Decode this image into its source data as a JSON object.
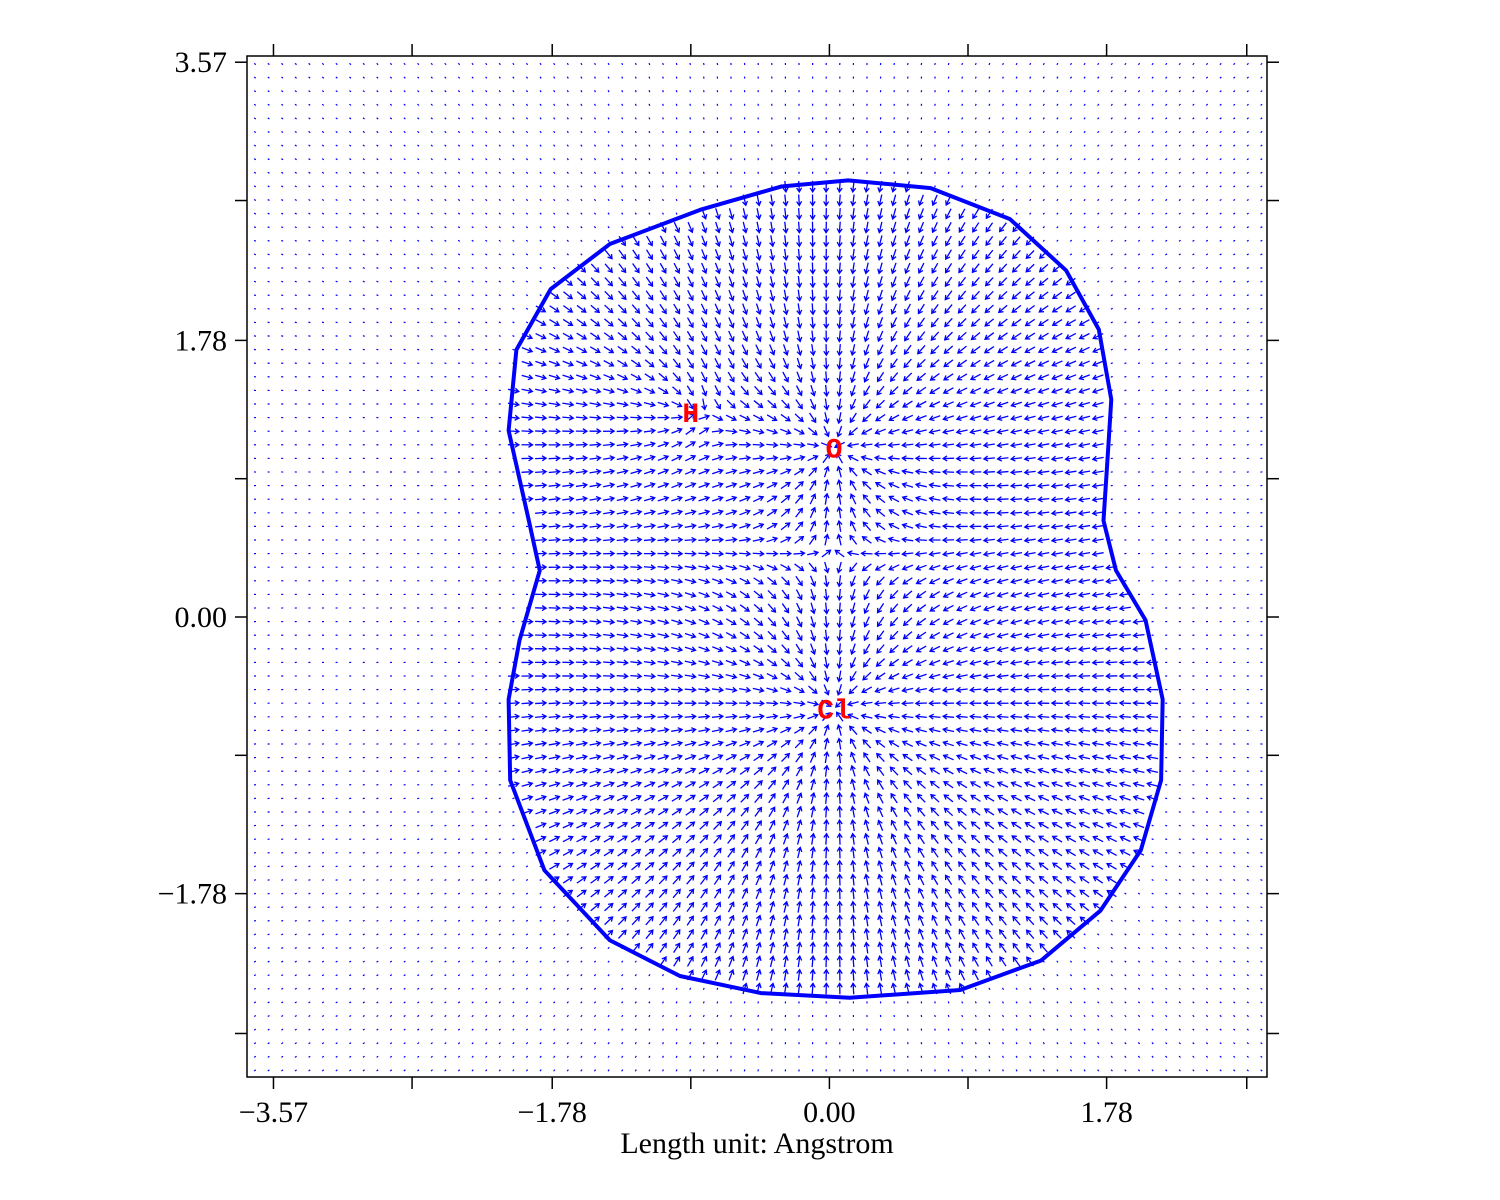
{
  "chart_data": {
    "type": "vector-field",
    "xlabel": "Length unit: Angstrom",
    "xlim": [
      -3.74,
      2.81
    ],
    "ylim": [
      -2.96,
      3.61
    ],
    "xticks": [
      {
        "value": -3.57,
        "label": "−3.57"
      },
      {
        "value": -1.78,
        "label": "−1.78"
      },
      {
        "value": 0,
        "label": "0.00"
      },
      1.78
    ],
    "yticks": [
      {
        "value": -1.78,
        "label": "−1.78"
      },
      {
        "value": 0,
        "label": "0.00"
      },
      1.78,
      3.57
    ],
    "xminorticks": [
      -2.68,
      -0.89,
      0.89,
      2.68
    ],
    "yminorticks": [
      -2.68,
      -0.89,
      0.89,
      2.68
    ],
    "arrow_color": "#0000ff",
    "atom_color": "#ff0000",
    "atoms": [
      {
        "label": "H",
        "x": -0.89,
        "y": 1.32
      },
      {
        "label": "O",
        "x": 0.03,
        "y": 1.09
      },
      {
        "label": "Cl",
        "x": 0.03,
        "y": -0.59
      }
    ],
    "contour": {
      "color": "#0000ff",
      "x": [
        0.12,
        0.65,
        1.16,
        1.52,
        1.73,
        1.81,
        1.79,
        1.76,
        1.84,
        2.03,
        2.14,
        2.13,
        2.0,
        1.74,
        1.36,
        0.84,
        0.13,
        -0.44,
        -0.96,
        -1.41,
        -1.83,
        -2.05,
        -2.06,
        -1.99,
        -1.86,
        -1.93,
        -2.06,
        -2.01,
        -1.79,
        -1.41,
        -0.83,
        -0.31
      ],
      "y": [
        2.81,
        2.76,
        2.56,
        2.23,
        1.85,
        1.4,
        1.08,
        0.62,
        0.3,
        -0.02,
        -0.53,
        -1.05,
        -1.5,
        -1.89,
        -2.21,
        -2.4,
        -2.45,
        -2.42,
        -2.31,
        -2.08,
        -1.63,
        -1.05,
        -0.53,
        -0.15,
        0.3,
        0.62,
        1.2,
        1.72,
        2.11,
        2.4,
        2.62,
        2.77
      ]
    }
  }
}
